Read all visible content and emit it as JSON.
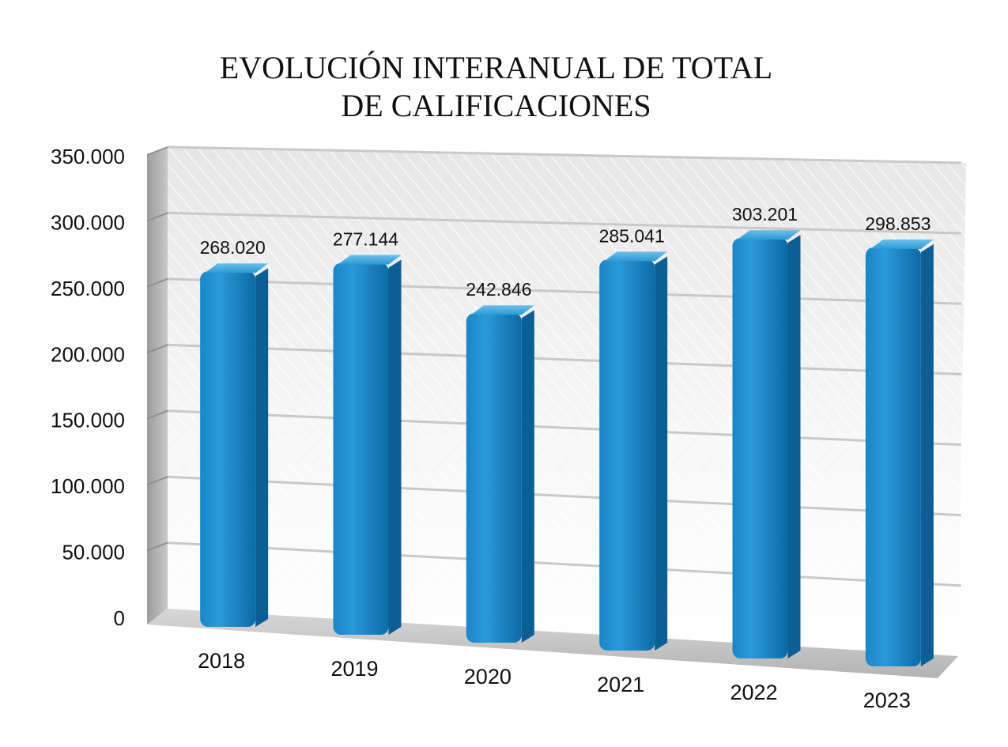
{
  "chart_data": {
    "type": "bar",
    "title_lines": [
      "EVOLUCIÓN INTERANUAL DE TOTAL",
      "DE CALIFICACIONES"
    ],
    "categories": [
      "2018",
      "2019",
      "2020",
      "2021",
      "2022",
      "2023"
    ],
    "values": [
      268020,
      277144,
      242846,
      285041,
      303201,
      298853
    ],
    "value_labels": [
      "268.020",
      "277.144",
      "242.846",
      "285.041",
      "303.201",
      "298.853"
    ],
    "yticks": [
      "0",
      "50.000",
      "100.000",
      "150.000",
      "200.000",
      "250.000",
      "300.000",
      "350.000"
    ],
    "ylim": [
      0,
      350000
    ],
    "grid": true,
    "bar_color": "#1a86c8",
    "bar_dark": "#0b5f95",
    "legend": "none"
  }
}
